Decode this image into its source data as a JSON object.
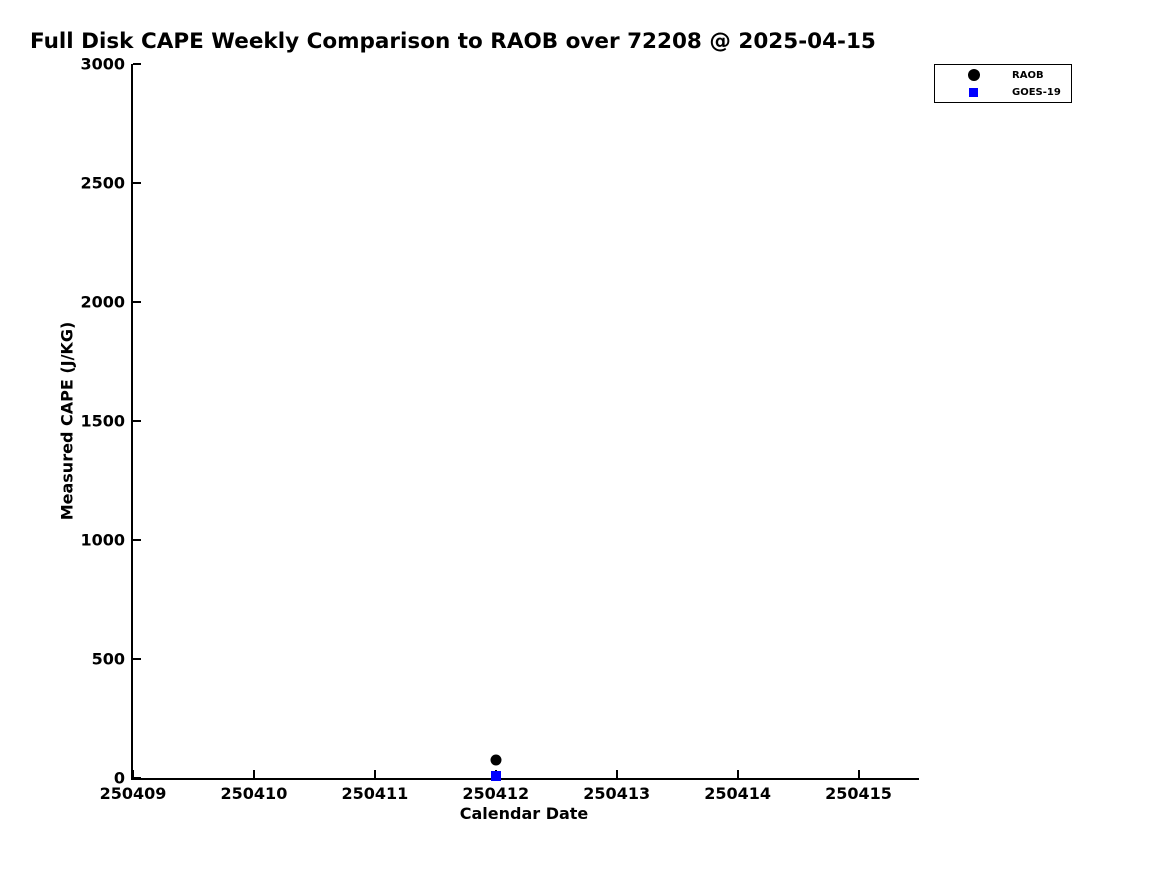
{
  "chart_data": {
    "type": "scatter",
    "title": "Full Disk CAPE Weekly Comparison to RAOB over 72208 @ 2025-04-15",
    "xlabel": "Calendar Date",
    "ylabel": "Measured CAPE (J/KG)",
    "x_tick_labels": [
      "250409",
      "250410",
      "250411",
      "250412",
      "250413",
      "250414",
      "250415"
    ],
    "y_ticks": [
      0,
      500,
      1000,
      1500,
      2000,
      2500,
      3000
    ],
    "xlim_days": [
      0,
      6.5
    ],
    "ylim": [
      0,
      3000
    ],
    "grid": false,
    "background": "#ffffff",
    "axis_color": "#000000",
    "legend_position": "top-right-outside",
    "legend": [
      {
        "label": "RAOB",
        "marker": "circle",
        "color": "#000000"
      },
      {
        "label": "GOES-19",
        "marker": "square",
        "color": "#0000ff"
      }
    ],
    "series": [
      {
        "name": "RAOB",
        "marker": "circle",
        "color": "#000000",
        "points": [
          {
            "date": "250412",
            "value": 75
          }
        ]
      },
      {
        "name": "GOES-19",
        "marker": "square",
        "color": "#0000ff",
        "points": [
          {
            "date": "250412",
            "value": 10
          }
        ]
      }
    ]
  }
}
